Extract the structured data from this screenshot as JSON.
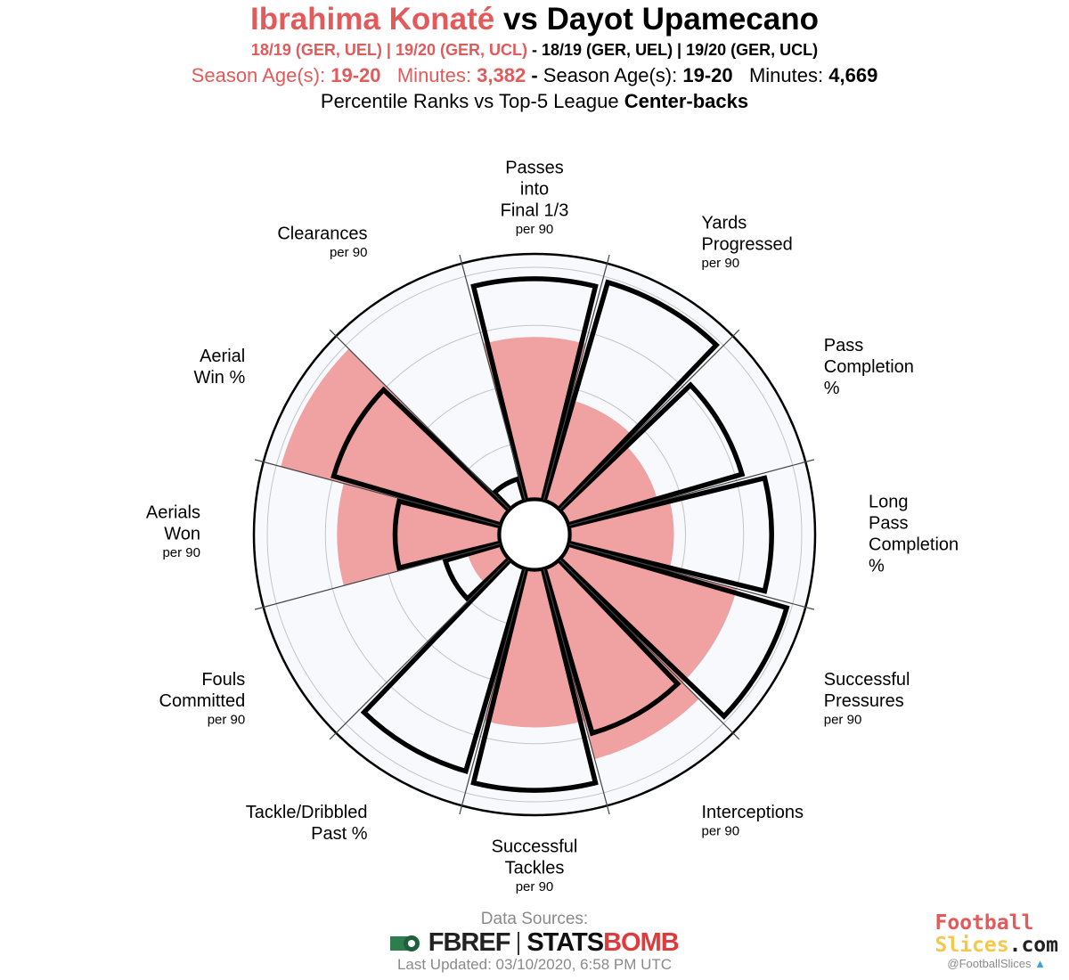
{
  "header": {
    "player1": "Ibrahima Konaté",
    "vs": "vs",
    "player2": "Dayot Upamecano",
    "seasons1": "18/19 (GER, UEL)  | 19/20 (GER, UCL)",
    "dash": "-",
    "seasons2": "18/19 (GER, UEL)  | 19/20 (GER, UCL)",
    "age_label": "Season Age(s):",
    "age1": "19-20",
    "minutes_label": "Minutes:",
    "minutes1": "3,382",
    "age2": "19-20",
    "minutes2": "4,669",
    "compare_prefix": "Percentile Ranks vs Top-5 League",
    "compare_group": "Center-backs"
  },
  "footer": {
    "sources_label": "Data Sources:",
    "fbref": "FBREF",
    "statsbomb_a": "STATS",
    "statsbomb_b": "BOMB",
    "updated": "Last Updated: 03/10/2020, 6:58 PM UTC",
    "brand_line1": "Football",
    "brand_line2a": "Slices",
    "brand_line2b": ".com",
    "handle": "@FootballSlices"
  },
  "colors": {
    "player1_fill": "#f0a1a2",
    "player1_text": "#e25a5a",
    "player2_outline": "#000000",
    "background": "#f8f9fc"
  },
  "chart_data": {
    "type": "radar-bar",
    "scale": [
      0,
      100
    ],
    "rings": [
      25,
      50,
      75,
      100
    ],
    "categories": [
      {
        "name": "Passes into Final 1/3",
        "label_lines": [
          "Passes",
          "into",
          "Final 1/3"
        ],
        "per90": "per 90",
        "konate": 70,
        "upamecano": 95
      },
      {
        "name": "Yards Progressed",
        "label_lines": [
          "Yards",
          "Progressed"
        ],
        "per90": "per 90",
        "konate": 45,
        "upamecano": 98
      },
      {
        "name": "Pass Completion %",
        "label_lines": [
          "Pass",
          "Completion",
          "%"
        ],
        "per90": "",
        "konate": 40,
        "upamecano": 78
      },
      {
        "name": "Long Pass Completion %",
        "label_lines": [
          "Long",
          "Pass",
          "Completion",
          "%"
        ],
        "per90": "",
        "konate": 45,
        "upamecano": 87
      },
      {
        "name": "Successful Pressures",
        "label_lines": [
          "Successful",
          "Pressures"
        ],
        "per90": "per 90",
        "konate": 75,
        "upamecano": 98
      },
      {
        "name": "Interceptions",
        "label_lines": [
          "Interceptions"
        ],
        "per90": "per 90",
        "konate": 85,
        "upamecano": 74
      },
      {
        "name": "Successful Tackles",
        "label_lines": [
          "Successful",
          "Tackles"
        ],
        "per90": "per 90",
        "konate": 68,
        "upamecano": 95
      },
      {
        "name": "Tackle/Dribbled Past %",
        "label_lines": [
          "Tackle/Dribbled",
          "Past %"
        ],
        "per90": "",
        "konate": 0,
        "upamecano": 91
      },
      {
        "name": "Fouls Committed",
        "label_lines": [
          "Fouls",
          "Committed"
        ],
        "per90": "per 90",
        "konate": 15,
        "upamecano": 25
      },
      {
        "name": "Aerials Won",
        "label_lines": [
          "Aerials",
          "Won"
        ],
        "per90": "per 90",
        "konate": 70,
        "upamecano": 45
      },
      {
        "name": "Aerial Win %",
        "label_lines": [
          "Aerial",
          "Win %"
        ],
        "per90": "",
        "konate": 98,
        "upamecano": 75
      },
      {
        "name": "Clearances",
        "label_lines": [
          "Clearances"
        ],
        "per90": "per 90",
        "konate": 0,
        "upamecano": 10
      }
    ]
  }
}
